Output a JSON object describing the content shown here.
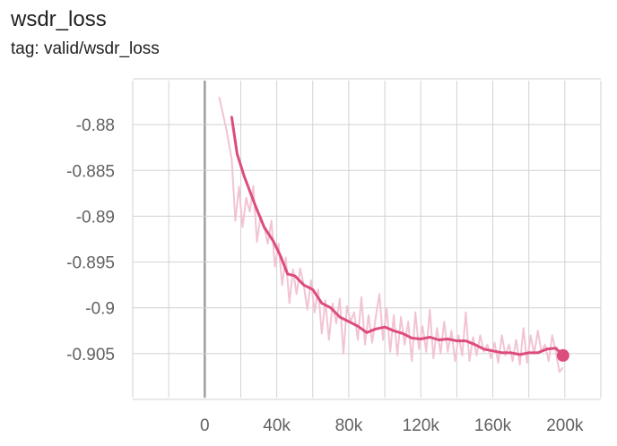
{
  "header": {
    "title": "wsdr_loss",
    "subtitle": "tag: valid/wsdr_loss"
  },
  "chart_data": {
    "type": "line",
    "title": "wsdr_loss",
    "subtitle": "tag: valid/wsdr_loss",
    "xlabel": "",
    "ylabel": "",
    "xlim": [
      -40000,
      220000
    ],
    "ylim": [
      -0.9098,
      -0.8752
    ],
    "x_ticks": [
      0,
      40000,
      80000,
      120000,
      160000,
      200000
    ],
    "x_tick_labels": [
      "0",
      "40k",
      "80k",
      "120k",
      "160k",
      "200k"
    ],
    "y_ticks": [
      -0.88,
      -0.885,
      -0.89,
      -0.895,
      -0.9,
      -0.905
    ],
    "y_tick_labels": [
      "-0.88",
      "-0.885",
      "-0.89",
      "-0.895",
      "-0.9",
      "-0.905"
    ],
    "grid": true,
    "colors": {
      "smoothed": "#dc4c7f",
      "raw": "#f2c4d3",
      "grid": "#d2d2d2",
      "zero_line": "#9e9e9e",
      "tick_text": "#616161"
    },
    "series": [
      {
        "role": "smoothed",
        "x": [
          15000,
          18000,
          22000,
          28000,
          33000,
          38000,
          42000,
          46000,
          50000,
          55000,
          60000,
          65000,
          70000,
          75000,
          80000,
          85000,
          90000,
          95000,
          100000,
          105000,
          110000,
          115000,
          120000,
          125000,
          130000,
          135000,
          140000,
          145000,
          150000,
          155000,
          160000,
          165000,
          170000,
          175000,
          180000,
          185000,
          190000,
          195000,
          199000
        ],
        "y": [
          -0.8792,
          -0.8832,
          -0.8857,
          -0.8888,
          -0.8912,
          -0.8927,
          -0.8943,
          -0.8963,
          -0.8965,
          -0.8975,
          -0.898,
          -0.8995,
          -0.9,
          -0.901,
          -0.9015,
          -0.902,
          -0.9027,
          -0.9023,
          -0.9021,
          -0.9025,
          -0.9028,
          -0.9033,
          -0.9034,
          -0.9032,
          -0.9035,
          -0.9034,
          -0.9036,
          -0.9036,
          -0.904,
          -0.9045,
          -0.9047,
          -0.9049,
          -0.9049,
          -0.9051,
          -0.9049,
          -0.9049,
          -0.9045,
          -0.9044,
          -0.9052
        ]
      },
      {
        "role": "raw",
        "x": [
          8000,
          12000,
          15000,
          17000,
          19000,
          21000,
          23000,
          25000,
          27000,
          29000,
          31000,
          33000,
          35000,
          37000,
          39000,
          41000,
          43000,
          45000,
          47000,
          49000,
          51000,
          53000,
          55000,
          57000,
          59000,
          61000,
          63000,
          65000,
          67000,
          69000,
          71000,
          73000,
          75000,
          77000,
          79000,
          81000,
          83000,
          85000,
          87000,
          89000,
          91000,
          93000,
          95000,
          97000,
          99000,
          101000,
          103000,
          105000,
          107000,
          109000,
          111000,
          113000,
          115000,
          117000,
          119000,
          121000,
          123000,
          125000,
          127000,
          129000,
          131000,
          133000,
          135000,
          137000,
          139000,
          141000,
          143000,
          145000,
          147000,
          149000,
          151000,
          153000,
          155000,
          157000,
          159000,
          161000,
          163000,
          165000,
          167000,
          169000,
          171000,
          173000,
          175000,
          177000,
          179000,
          181000,
          183000,
          185000,
          187000,
          189000,
          191000,
          193000,
          195000,
          197000,
          199000
        ],
        "y": [
          -0.877,
          -0.8805,
          -0.8838,
          -0.8905,
          -0.8868,
          -0.8912,
          -0.888,
          -0.8895,
          -0.8867,
          -0.8928,
          -0.89,
          -0.8912,
          -0.893,
          -0.8905,
          -0.8955,
          -0.893,
          -0.8975,
          -0.8945,
          -0.8995,
          -0.8958,
          -0.8985,
          -0.8957,
          -0.8975,
          -0.9002,
          -0.897,
          -0.9005,
          -0.898,
          -0.9028,
          -0.8992,
          -0.9035,
          -0.8995,
          -0.9017,
          -0.899,
          -0.905,
          -0.8998,
          -0.9015,
          -0.9005,
          -0.9035,
          -0.8988,
          -0.904,
          -0.9008,
          -0.9038,
          -0.901,
          -0.8985,
          -0.9035,
          -0.9,
          -0.9048,
          -0.9008,
          -0.9052,
          -0.901,
          -0.904,
          -0.9015,
          -0.9058,
          -0.9005,
          -0.9045,
          -0.902,
          -0.9048,
          -0.9002,
          -0.9055,
          -0.9022,
          -0.905,
          -0.9015,
          -0.9048,
          -0.9025,
          -0.9058,
          -0.903,
          -0.9052,
          -0.9005,
          -0.9058,
          -0.9032,
          -0.9052,
          -0.903,
          -0.9048,
          -0.904,
          -0.9055,
          -0.9038,
          -0.906,
          -0.903,
          -0.9052,
          -0.904,
          -0.9058,
          -0.9035,
          -0.9062,
          -0.9022,
          -0.906,
          -0.903,
          -0.905,
          -0.9025,
          -0.9048,
          -0.904,
          -0.9058,
          -0.903,
          -0.9048,
          -0.907,
          -0.9065
        ]
      }
    ]
  }
}
